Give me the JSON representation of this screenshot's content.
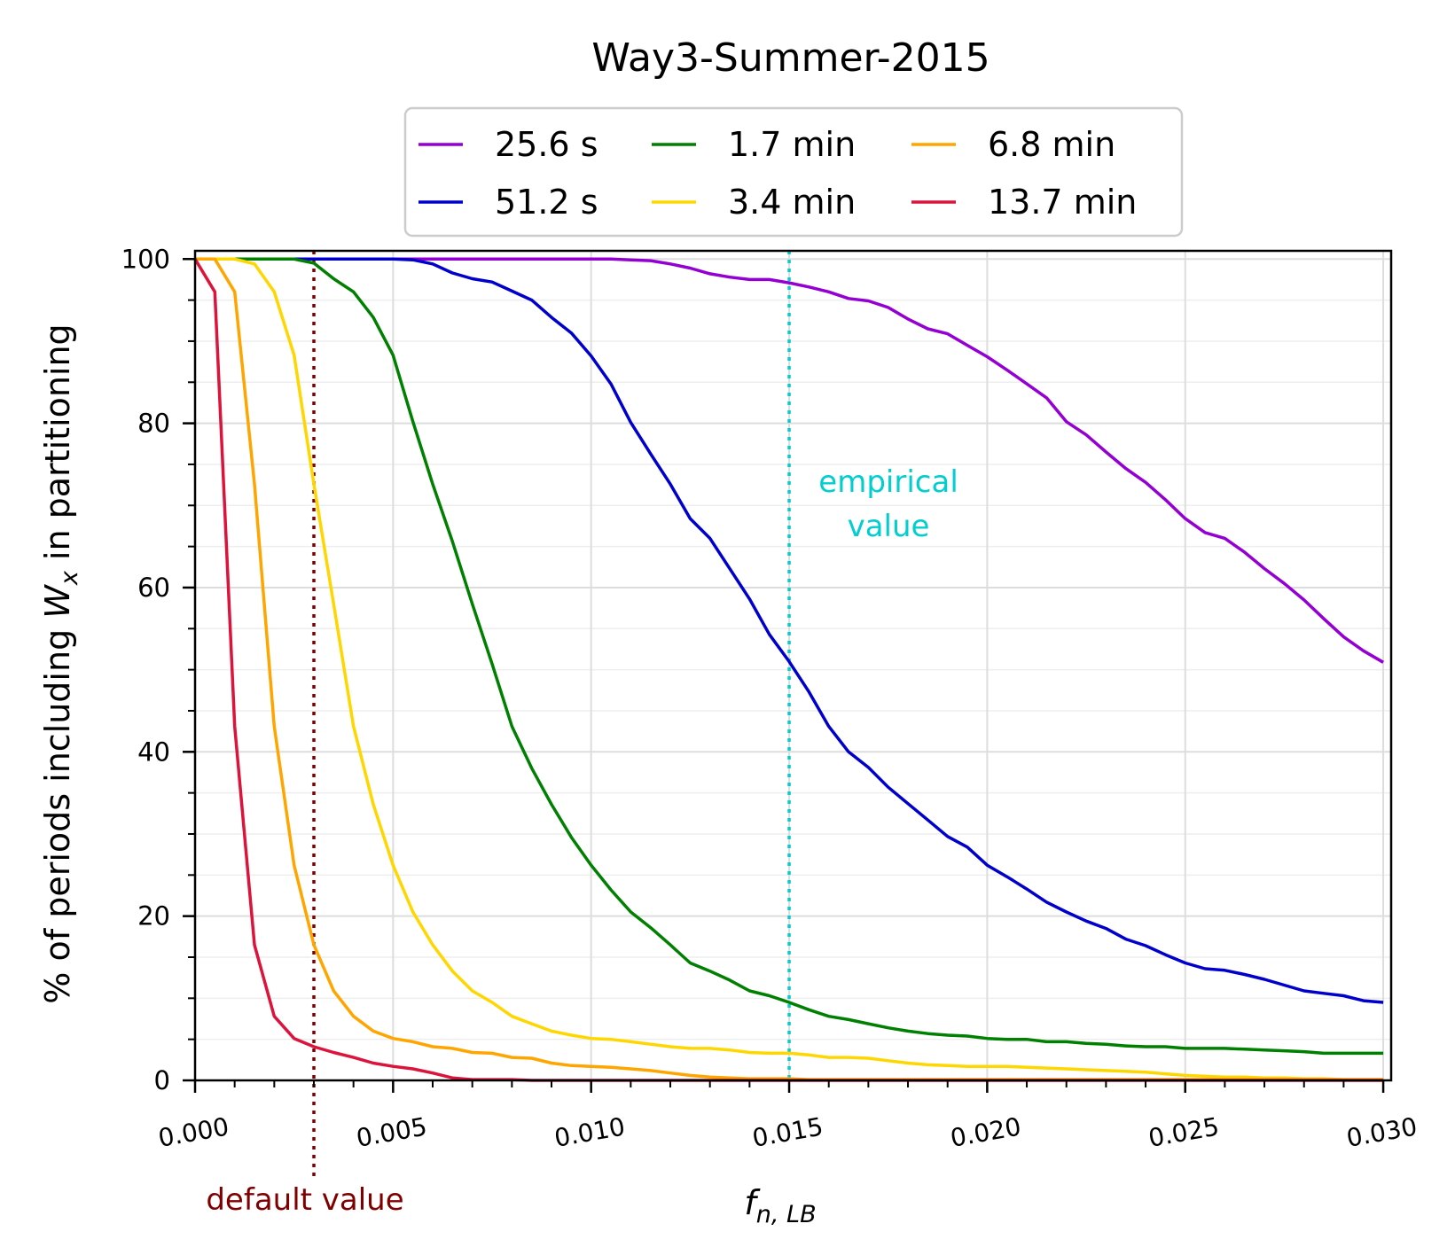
{
  "chart_data": {
    "type": "line",
    "title": "Way3-Summer-2015",
    "xlabel_main": "f",
    "xlabel_sub": "n, LB",
    "ylabel_pre": "% of periods including ",
    "ylabel_var": "W",
    "ylabel_sub": "x",
    "ylabel_post": " in partitioning",
    "xlim": [
      0.0,
      0.0302
    ],
    "ylim": [
      0,
      101
    ],
    "x_ticks": [
      0.0,
      0.005,
      0.01,
      0.015,
      0.02,
      0.025,
      0.03
    ],
    "x_tick_labels": [
      "0.000",
      "0.005",
      "0.010",
      "0.015",
      "0.020",
      "0.025",
      "0.030"
    ],
    "y_ticks": [
      0,
      20,
      40,
      60,
      80,
      100
    ],
    "y_tick_labels": [
      "0",
      "20",
      "40",
      "60",
      "80",
      "100"
    ],
    "grid": true,
    "legend_position": "above plot, centered, 3 columns",
    "x": [
      0.0,
      0.0005,
      0.001,
      0.0015,
      0.002,
      0.0025,
      0.003,
      0.0035,
      0.004,
      0.0045,
      0.005,
      0.0055,
      0.006,
      0.0065,
      0.007,
      0.0075,
      0.008,
      0.0085,
      0.009,
      0.0095,
      0.01,
      0.0105,
      0.011,
      0.0115,
      0.012,
      0.0125,
      0.013,
      0.0135,
      0.014,
      0.0145,
      0.015,
      0.0155,
      0.016,
      0.0165,
      0.017,
      0.0175,
      0.018,
      0.0185,
      0.019,
      0.0195,
      0.02,
      0.0205,
      0.021,
      0.0215,
      0.022,
      0.0225,
      0.023,
      0.0235,
      0.024,
      0.0245,
      0.025,
      0.0255,
      0.026,
      0.0265,
      0.027,
      0.0275,
      0.028,
      0.0285,
      0.029,
      0.0295,
      0.03
    ],
    "series": [
      {
        "name": "25.6 s",
        "color": "#9400d3",
        "values": [
          100,
          100,
          100,
          100,
          100,
          100,
          100,
          100,
          100,
          100,
          100,
          100,
          100,
          100,
          100,
          100,
          100,
          100,
          100,
          100,
          100,
          100,
          99.9,
          99.8,
          99.4,
          98.9,
          98.2,
          97.8,
          97.5,
          97.5,
          97.1,
          96.6,
          96.0,
          95.2,
          94.9,
          94.1,
          92.7,
          91.5,
          90.9,
          89.5,
          88.1,
          86.5,
          84.8,
          83.1,
          80.2,
          78.6,
          76.5,
          74.5,
          72.8,
          70.7,
          68.4,
          66.7,
          66.0,
          64.3,
          62.3,
          60.5,
          58.5,
          56.2,
          54.0,
          52.3,
          50.9
        ]
      },
      {
        "name": "51.2 s",
        "color": "#0000cd",
        "values": [
          100,
          100,
          100,
          100,
          100,
          100,
          100,
          100,
          100,
          100,
          100,
          99.9,
          99.4,
          98.3,
          97.6,
          97.2,
          96.1,
          95.0,
          92.9,
          91.0,
          88.2,
          84.8,
          80.1,
          76.3,
          72.6,
          68.4,
          66.0,
          62.3,
          58.6,
          54.3,
          51.0,
          47.3,
          43.1,
          40.0,
          38.1,
          35.7,
          33.7,
          31.7,
          29.7,
          28.4,
          26.2,
          24.8,
          23.3,
          21.7,
          20.5,
          19.4,
          18.5,
          17.2,
          16.4,
          15.3,
          14.3,
          13.6,
          13.4,
          12.9,
          12.3,
          11.6,
          10.9,
          10.6,
          10.3,
          9.7,
          9.5
        ]
      },
      {
        "name": "1.7 min",
        "color": "#008000",
        "values": [
          100,
          100,
          100,
          100,
          100,
          100,
          99.5,
          97.6,
          96.0,
          92.9,
          88.3,
          80.2,
          72.6,
          65.6,
          58.0,
          50.7,
          43.1,
          38.0,
          33.6,
          29.6,
          26.2,
          23.2,
          20.5,
          18.6,
          16.5,
          14.3,
          13.3,
          12.2,
          10.9,
          10.3,
          9.5,
          8.6,
          7.8,
          7.4,
          6.9,
          6.4,
          6.0,
          5.7,
          5.5,
          5.4,
          5.1,
          5.0,
          5.0,
          4.7,
          4.7,
          4.5,
          4.4,
          4.2,
          4.1,
          4.1,
          3.9,
          3.9,
          3.9,
          3.8,
          3.7,
          3.6,
          3.5,
          3.3,
          3.3,
          3.3,
          3.3
        ]
      },
      {
        "name": "3.4 min",
        "color": "#ffd700",
        "values": [
          100,
          100,
          100,
          99.4,
          96.0,
          88.3,
          72.6,
          58.0,
          43.1,
          33.6,
          26.2,
          20.5,
          16.5,
          13.3,
          10.9,
          9.5,
          7.8,
          6.9,
          6.0,
          5.5,
          5.1,
          5.0,
          4.7,
          4.4,
          4.1,
          3.9,
          3.9,
          3.7,
          3.4,
          3.3,
          3.3,
          3.1,
          2.8,
          2.8,
          2.7,
          2.4,
          2.1,
          1.9,
          1.8,
          1.7,
          1.7,
          1.7,
          1.6,
          1.5,
          1.4,
          1.3,
          1.2,
          1.1,
          1.0,
          0.8,
          0.6,
          0.5,
          0.4,
          0.4,
          0.3,
          0.3,
          0.2,
          0.2,
          0.1,
          0.1,
          0.1
        ]
      },
      {
        "name": "6.8 min",
        "color": "#ffa500",
        "values": [
          100,
          100,
          96.0,
          72.6,
          43.1,
          26.2,
          16.5,
          10.9,
          7.8,
          6.0,
          5.1,
          4.7,
          4.1,
          3.9,
          3.4,
          3.3,
          2.8,
          2.7,
          2.1,
          1.8,
          1.7,
          1.6,
          1.4,
          1.2,
          0.9,
          0.6,
          0.4,
          0.3,
          0.2,
          0.2,
          0.2,
          0.1,
          0.1,
          0.1,
          0.1,
          0.1,
          0.1,
          0.1,
          0.1,
          0.1,
          0.1,
          0.1,
          0.1,
          0.1,
          0.1,
          0.1,
          0.1,
          0.1,
          0.1,
          0.1,
          0.1,
          0.1,
          0.1,
          0.1,
          0.1,
          0.1,
          0.1,
          0.1,
          0.1,
          0.1,
          0.1
        ]
      },
      {
        "name": "13.7 min",
        "color": "#dc143c",
        "values": [
          100,
          96.0,
          43.1,
          16.5,
          7.8,
          5.1,
          4.1,
          3.4,
          2.8,
          2.1,
          1.7,
          1.4,
          0.9,
          0.3,
          0.1,
          0.1,
          0.1,
          0.0,
          0.0,
          0.0,
          0.0,
          0.0,
          0.0,
          0.0,
          0.0,
          0.0,
          0.0,
          0.0,
          0.0,
          0.0,
          0.0,
          0.0,
          0.0,
          0.0,
          0.0,
          0.0,
          0.0,
          0.0,
          0.0,
          0.0,
          0.0,
          0.0,
          0.0,
          0.0,
          0.0,
          0.0,
          0.0,
          0.0,
          0.0,
          0.0,
          0.0,
          0.0,
          0.0,
          0.0,
          0.0,
          0.0,
          0.0,
          0.0,
          0.0,
          0.0,
          0.0
        ]
      }
    ],
    "annotations": [
      {
        "name": "default-value",
        "x": 0.003,
        "text": "default value",
        "color": "#800000",
        "style": "dotted"
      },
      {
        "name": "empirical-value",
        "x": 0.015,
        "text_lines": [
          "empirical",
          "value"
        ],
        "color": "#00ced1",
        "style": "dotted"
      }
    ]
  }
}
